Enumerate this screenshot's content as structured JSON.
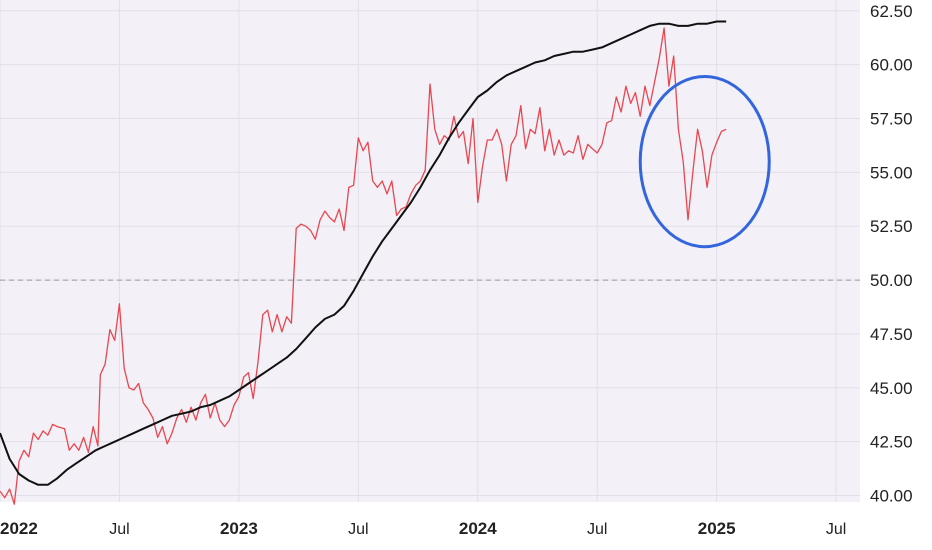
{
  "chart_data": {
    "type": "line",
    "title": "",
    "xlabel": "",
    "ylabel": "",
    "grid": true,
    "ylim": [
      39.7,
      63.0
    ],
    "y_ticks": [
      "40.00",
      "42.50",
      "45.00",
      "47.50",
      "50.00",
      "52.50",
      "55.00",
      "57.50",
      "60.00",
      "62.50"
    ],
    "x_ticks": [
      {
        "label": "2022",
        "x": 2022.0,
        "bold": true
      },
      {
        "label": "Jul",
        "x": 2022.5,
        "bold": false
      },
      {
        "label": "2023",
        "x": 2023.0,
        "bold": true
      },
      {
        "label": "Jul",
        "x": 2023.5,
        "bold": false
      },
      {
        "label": "2024",
        "x": 2024.0,
        "bold": true
      },
      {
        "label": "Jul",
        "x": 2024.5,
        "bold": false
      },
      {
        "label": "2025",
        "x": 2025.0,
        "bold": true
      },
      {
        "label": "Jul",
        "x": 2025.5,
        "bold": false
      }
    ],
    "xlim": [
      2022.0,
      2025.6
    ],
    "reference_line": {
      "y": 50.0,
      "style": "dashed"
    },
    "highlight_ellipse": {
      "cx": 2024.95,
      "cy": 55.5,
      "rx": 0.27,
      "ry": 3.95,
      "color": "#3366dd"
    },
    "colors": {
      "price": "#e8474f",
      "average": "#111111",
      "background": "#f3f0f8",
      "grid": "#e2dfe8"
    },
    "series": [
      {
        "color": "#e8474f",
        "points": [
          [
            2022.0,
            40.2
          ],
          [
            2022.02,
            39.9
          ],
          [
            2022.04,
            40.3
          ],
          [
            2022.06,
            39.6
          ],
          [
            2022.08,
            41.6
          ],
          [
            2022.1,
            42.1
          ],
          [
            2022.12,
            41.8
          ],
          [
            2022.14,
            42.9
          ],
          [
            2022.16,
            42.6
          ],
          [
            2022.18,
            43.0
          ],
          [
            2022.2,
            42.8
          ],
          [
            2022.22,
            43.3
          ],
          [
            2022.24,
            43.2
          ],
          [
            2022.27,
            43.1
          ],
          [
            2022.29,
            42.1
          ],
          [
            2022.31,
            42.4
          ],
          [
            2022.33,
            42.1
          ],
          [
            2022.35,
            42.7
          ],
          [
            2022.37,
            42.0
          ],
          [
            2022.39,
            43.2
          ],
          [
            2022.41,
            42.3
          ],
          [
            2022.42,
            45.6
          ],
          [
            2022.44,
            46.1
          ],
          [
            2022.46,
            47.7
          ],
          [
            2022.48,
            47.2
          ],
          [
            2022.5,
            48.9
          ],
          [
            2022.52,
            45.9
          ],
          [
            2022.54,
            45.0
          ],
          [
            2022.56,
            44.9
          ],
          [
            2022.58,
            45.2
          ],
          [
            2022.6,
            44.3
          ],
          [
            2022.62,
            44.0
          ],
          [
            2022.64,
            43.6
          ],
          [
            2022.66,
            42.7
          ],
          [
            2022.68,
            43.2
          ],
          [
            2022.7,
            42.4
          ],
          [
            2022.72,
            42.9
          ],
          [
            2022.74,
            43.6
          ],
          [
            2022.76,
            44.0
          ],
          [
            2022.78,
            43.4
          ],
          [
            2022.8,
            44.1
          ],
          [
            2022.82,
            43.5
          ],
          [
            2022.84,
            44.3
          ],
          [
            2022.86,
            44.7
          ],
          [
            2022.88,
            43.6
          ],
          [
            2022.9,
            44.3
          ],
          [
            2022.92,
            43.5
          ],
          [
            2022.94,
            43.2
          ],
          [
            2022.96,
            43.5
          ],
          [
            2022.98,
            44.2
          ],
          [
            2023.0,
            44.6
          ],
          [
            2023.02,
            45.5
          ],
          [
            2023.04,
            45.7
          ],
          [
            2023.06,
            44.5
          ],
          [
            2023.08,
            46.2
          ],
          [
            2023.1,
            48.4
          ],
          [
            2023.12,
            48.6
          ],
          [
            2023.14,
            47.6
          ],
          [
            2023.16,
            48.4
          ],
          [
            2023.18,
            47.6
          ],
          [
            2023.2,
            48.3
          ],
          [
            2023.22,
            48.0
          ],
          [
            2023.24,
            52.4
          ],
          [
            2023.26,
            52.6
          ],
          [
            2023.28,
            52.5
          ],
          [
            2023.3,
            52.3
          ],
          [
            2023.32,
            51.9
          ],
          [
            2023.34,
            52.8
          ],
          [
            2023.36,
            53.2
          ],
          [
            2023.38,
            52.9
          ],
          [
            2023.4,
            52.7
          ],
          [
            2023.42,
            53.3
          ],
          [
            2023.44,
            52.3
          ],
          [
            2023.46,
            54.3
          ],
          [
            2023.48,
            54.4
          ],
          [
            2023.5,
            56.6
          ],
          [
            2023.52,
            56.0
          ],
          [
            2023.54,
            56.4
          ],
          [
            2023.56,
            54.6
          ],
          [
            2023.58,
            54.3
          ],
          [
            2023.6,
            54.6
          ],
          [
            2023.62,
            54.0
          ],
          [
            2023.64,
            54.6
          ],
          [
            2023.66,
            53.0
          ],
          [
            2023.68,
            53.3
          ],
          [
            2023.7,
            53.4
          ],
          [
            2023.72,
            54.0
          ],
          [
            2023.74,
            54.4
          ],
          [
            2023.76,
            54.6
          ],
          [
            2023.78,
            55.1
          ],
          [
            2023.8,
            59.1
          ],
          [
            2023.82,
            57.0
          ],
          [
            2023.84,
            56.3
          ],
          [
            2023.86,
            56.7
          ],
          [
            2023.88,
            56.5
          ],
          [
            2023.9,
            57.6
          ],
          [
            2023.92,
            56.6
          ],
          [
            2023.94,
            56.9
          ],
          [
            2023.96,
            55.4
          ],
          [
            2023.98,
            57.5
          ],
          [
            2024.0,
            53.6
          ],
          [
            2024.02,
            55.3
          ],
          [
            2024.04,
            56.5
          ],
          [
            2024.06,
            56.5
          ],
          [
            2024.08,
            57.0
          ],
          [
            2024.1,
            56.3
          ],
          [
            2024.12,
            54.6
          ],
          [
            2024.14,
            56.3
          ],
          [
            2024.16,
            56.7
          ],
          [
            2024.18,
            58.1
          ],
          [
            2024.2,
            56.1
          ],
          [
            2024.22,
            57.0
          ],
          [
            2024.24,
            56.8
          ],
          [
            2024.26,
            58.0
          ],
          [
            2024.28,
            56.0
          ],
          [
            2024.3,
            57.0
          ],
          [
            2024.32,
            55.8
          ],
          [
            2024.34,
            56.5
          ],
          [
            2024.36,
            55.8
          ],
          [
            2024.38,
            56.0
          ],
          [
            2024.4,
            55.9
          ],
          [
            2024.42,
            56.7
          ],
          [
            2024.44,
            55.6
          ],
          [
            2024.46,
            56.3
          ],
          [
            2024.48,
            56.1
          ],
          [
            2024.5,
            55.9
          ],
          [
            2024.52,
            56.3
          ],
          [
            2024.54,
            57.3
          ],
          [
            2024.56,
            57.4
          ],
          [
            2024.58,
            58.5
          ],
          [
            2024.6,
            57.8
          ],
          [
            2024.62,
            59.0
          ],
          [
            2024.64,
            58.2
          ],
          [
            2024.66,
            58.7
          ],
          [
            2024.68,
            57.6
          ],
          [
            2024.7,
            59.0
          ],
          [
            2024.72,
            58.1
          ],
          [
            2024.74,
            59.2
          ],
          [
            2024.76,
            60.3
          ],
          [
            2024.78,
            61.7
          ],
          [
            2024.8,
            59.0
          ],
          [
            2024.82,
            60.4
          ],
          [
            2024.84,
            57.0
          ],
          [
            2024.86,
            55.5
          ],
          [
            2024.88,
            52.8
          ],
          [
            2024.9,
            55.0
          ],
          [
            2024.92,
            57.0
          ],
          [
            2024.94,
            56.0
          ],
          [
            2024.96,
            54.3
          ],
          [
            2024.98,
            55.8
          ],
          [
            2025.0,
            56.4
          ],
          [
            2025.02,
            56.9
          ],
          [
            2025.04,
            57.0
          ]
        ]
      },
      {
        "color": "#111111",
        "points": [
          [
            2022.0,
            42.9
          ],
          [
            2022.04,
            41.7
          ],
          [
            2022.08,
            41.0
          ],
          [
            2022.12,
            40.7
          ],
          [
            2022.16,
            40.5
          ],
          [
            2022.2,
            40.5
          ],
          [
            2022.24,
            40.8
          ],
          [
            2022.28,
            41.2
          ],
          [
            2022.32,
            41.5
          ],
          [
            2022.36,
            41.8
          ],
          [
            2022.4,
            42.1
          ],
          [
            2022.44,
            42.3
          ],
          [
            2022.48,
            42.5
          ],
          [
            2022.52,
            42.7
          ],
          [
            2022.56,
            42.9
          ],
          [
            2022.6,
            43.1
          ],
          [
            2022.64,
            43.3
          ],
          [
            2022.68,
            43.5
          ],
          [
            2022.72,
            43.7
          ],
          [
            2022.76,
            43.8
          ],
          [
            2022.8,
            43.9
          ],
          [
            2022.84,
            44.1
          ],
          [
            2022.88,
            44.2
          ],
          [
            2022.92,
            44.4
          ],
          [
            2022.96,
            44.6
          ],
          [
            2023.0,
            44.9
          ],
          [
            2023.04,
            45.2
          ],
          [
            2023.08,
            45.5
          ],
          [
            2023.12,
            45.8
          ],
          [
            2023.16,
            46.1
          ],
          [
            2023.2,
            46.4
          ],
          [
            2023.24,
            46.8
          ],
          [
            2023.28,
            47.3
          ],
          [
            2023.32,
            47.8
          ],
          [
            2023.36,
            48.2
          ],
          [
            2023.4,
            48.4
          ],
          [
            2023.44,
            48.8
          ],
          [
            2023.48,
            49.5
          ],
          [
            2023.52,
            50.3
          ],
          [
            2023.56,
            51.1
          ],
          [
            2023.6,
            51.8
          ],
          [
            2023.64,
            52.4
          ],
          [
            2023.68,
            53.0
          ],
          [
            2023.72,
            53.6
          ],
          [
            2023.76,
            54.3
          ],
          [
            2023.8,
            55.1
          ],
          [
            2023.84,
            55.8
          ],
          [
            2023.88,
            56.6
          ],
          [
            2023.92,
            57.3
          ],
          [
            2023.96,
            57.9
          ],
          [
            2024.0,
            58.5
          ],
          [
            2024.04,
            58.8
          ],
          [
            2024.08,
            59.2
          ],
          [
            2024.12,
            59.5
          ],
          [
            2024.16,
            59.7
          ],
          [
            2024.2,
            59.9
          ],
          [
            2024.24,
            60.1
          ],
          [
            2024.28,
            60.2
          ],
          [
            2024.32,
            60.4
          ],
          [
            2024.36,
            60.5
          ],
          [
            2024.4,
            60.6
          ],
          [
            2024.44,
            60.6
          ],
          [
            2024.48,
            60.7
          ],
          [
            2024.52,
            60.8
          ],
          [
            2024.56,
            61.0
          ],
          [
            2024.6,
            61.2
          ],
          [
            2024.64,
            61.4
          ],
          [
            2024.68,
            61.6
          ],
          [
            2024.72,
            61.8
          ],
          [
            2024.76,
            61.9
          ],
          [
            2024.8,
            61.9
          ],
          [
            2024.84,
            61.8
          ],
          [
            2024.88,
            61.8
          ],
          [
            2024.92,
            61.9
          ],
          [
            2024.96,
            61.9
          ],
          [
            2025.0,
            62.0
          ],
          [
            2025.04,
            62.0
          ]
        ]
      }
    ]
  }
}
